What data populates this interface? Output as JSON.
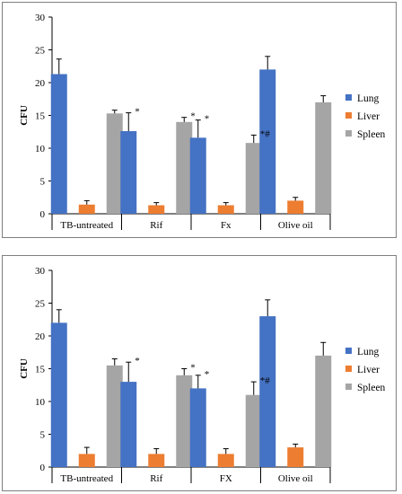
{
  "chart_data": [
    {
      "type": "bar",
      "ylabel": "CFU",
      "xlabel": "",
      "ylim": [
        0,
        30
      ],
      "yticks": [
        "0",
        "5",
        "10",
        "15",
        "20",
        "25",
        "30"
      ],
      "categories": [
        "TB-untreated",
        "Rif",
        "Fx",
        "Olive oil"
      ],
      "legend_position": "right",
      "series": [
        {
          "name": "Lung",
          "color": "#4472c4",
          "values": [
            21.3,
            12.6,
            11.6,
            22.0
          ],
          "errors": [
            2.3,
            2.8,
            2.7,
            2.0
          ]
        },
        {
          "name": "Liver",
          "color": "#ed7d31",
          "values": [
            1.4,
            1.3,
            1.3,
            2.0
          ],
          "errors": [
            0.6,
            0.4,
            0.4,
            0.5
          ]
        },
        {
          "name": "Spleen",
          "color": "#a5a5a5",
          "values": [
            15.3,
            14.0,
            10.8,
            17.0
          ],
          "errors": [
            0.5,
            0.7,
            1.2,
            1.0
          ]
        }
      ],
      "annotations": [
        {
          "category": "Rif",
          "series": "Lung",
          "text": "*"
        },
        {
          "category": "Rif",
          "series": "Spleen",
          "text": "*"
        },
        {
          "category": "Fx",
          "series": "Lung",
          "text": "*"
        },
        {
          "category": "Fx",
          "series": "Spleen",
          "text": "*#"
        }
      ]
    },
    {
      "type": "bar",
      "ylabel": "CFU",
      "xlabel": "",
      "ylim": [
        0,
        30
      ],
      "yticks": [
        "0",
        "5",
        "10",
        "15",
        "20",
        "25",
        "30"
      ],
      "categories": [
        "TB-untreated",
        "Rif",
        "FX",
        "Olive oil"
      ],
      "legend_position": "right",
      "series": [
        {
          "name": "Lung",
          "color": "#4472c4",
          "values": [
            22.0,
            13.0,
            12.0,
            23.0
          ],
          "errors": [
            2.0,
            3.0,
            2.0,
            2.5
          ]
        },
        {
          "name": "Liver",
          "color": "#ed7d31",
          "values": [
            2.0,
            2.0,
            2.0,
            3.0
          ],
          "errors": [
            1.0,
            0.8,
            0.8,
            0.5
          ]
        },
        {
          "name": "Spleen",
          "color": "#a5a5a5",
          "values": [
            15.5,
            14.0,
            11.0,
            17.0
          ],
          "errors": [
            1.0,
            1.0,
            2.0,
            2.0
          ]
        }
      ],
      "annotations": [
        {
          "category": "Rif",
          "series": "Lung",
          "text": "*"
        },
        {
          "category": "Rif",
          "series": "Spleen",
          "text": "*"
        },
        {
          "category": "FX",
          "series": "Lung",
          "text": "*"
        },
        {
          "category": "FX",
          "series": "Spleen",
          "text": "*#"
        }
      ]
    }
  ]
}
